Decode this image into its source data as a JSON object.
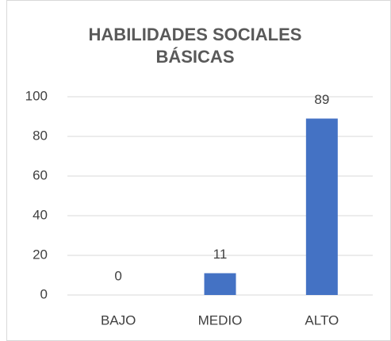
{
  "chart_data": {
    "type": "bar",
    "title": "HABILIDADES SOCIALES BÁSICAS",
    "categories": [
      "BAJO",
      "MEDIO",
      "ALTO"
    ],
    "values": [
      0,
      11,
      89
    ],
    "color": "#4472c4",
    "ylim": [
      0,
      100
    ],
    "yticks": [
      0,
      20,
      40,
      60,
      80,
      100
    ],
    "grid": true,
    "data_labels": true
  }
}
